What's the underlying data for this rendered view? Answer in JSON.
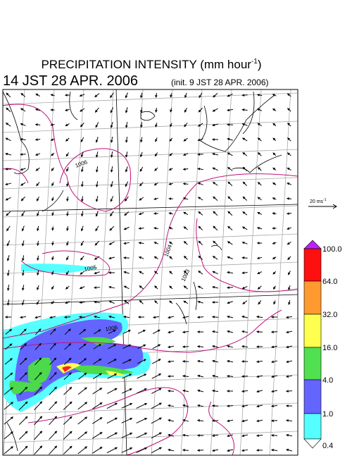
{
  "title": {
    "text": "PRECIPITATION INTENSITY (mm hour",
    "sup": "-1",
    "end": ")"
  },
  "valid_time": "14 JST 28 APR. 2006",
  "init_time": "(init. 9 JST 28 APR. 2006)",
  "wind_reference": {
    "text": "20 ms",
    "sup": "-1"
  },
  "contour_labels": [
    "1006",
    "1005",
    "1004",
    "1003",
    "1006"
  ],
  "colorbar": {
    "labels": [
      "100.0",
      "64.0",
      "32.0",
      "16.0",
      "4.0",
      "1.0",
      "0.4"
    ]
  }
}
